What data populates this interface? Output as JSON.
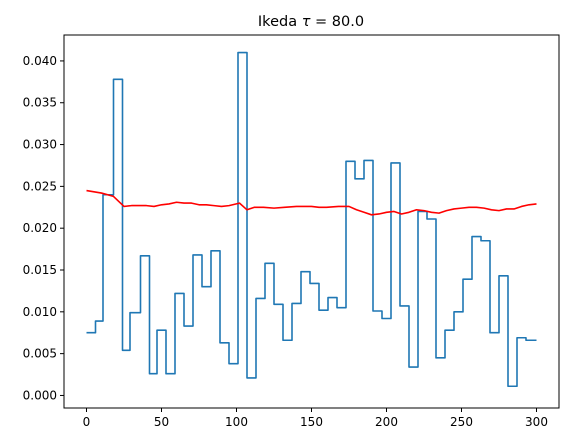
{
  "chart_data": {
    "type": "line",
    "title_prefix": "Ikeda ",
    "title_symbol": "τ",
    "title_suffix": " = 80.0",
    "xlabel": "",
    "ylabel": "",
    "xlim": [
      -15,
      315
    ],
    "ylim": [
      -0.0015,
      0.0431
    ],
    "x_ticks": [
      0,
      50,
      100,
      150,
      200,
      250,
      300
    ],
    "x_tick_labels": [
      "0",
      "50",
      "100",
      "150",
      "200",
      "250",
      "300"
    ],
    "y_ticks": [
      0.0,
      0.005,
      0.01,
      0.015,
      0.02,
      0.025,
      0.03,
      0.035,
      0.04
    ],
    "y_tick_labels": [
      "0.000",
      "0.005",
      "0.010",
      "0.015",
      "0.020",
      "0.025",
      "0.030",
      "0.035",
      "0.040"
    ],
    "grid": false,
    "legend": "none",
    "series": [
      {
        "color": "#1f77b4",
        "drawstyle": "steps",
        "points": [
          [
            0,
            0.0075
          ],
          [
            6,
            0.0075
          ],
          [
            6,
            0.0089
          ],
          [
            11,
            0.0089
          ],
          [
            11,
            0.024
          ],
          [
            18,
            0.024
          ],
          [
            18,
            0.0378
          ],
          [
            24,
            0.0378
          ],
          [
            24,
            0.0054
          ],
          [
            29,
            0.0054
          ],
          [
            29,
            0.0099
          ],
          [
            36,
            0.0099
          ],
          [
            36,
            0.0167
          ],
          [
            42,
            0.0167
          ],
          [
            42,
            0.0026
          ],
          [
            47,
            0.0026
          ],
          [
            47,
            0.0078
          ],
          [
            53,
            0.0078
          ],
          [
            53,
            0.0026
          ],
          [
            59,
            0.0026
          ],
          [
            59,
            0.0122
          ],
          [
            65,
            0.0122
          ],
          [
            65,
            0.0083
          ],
          [
            71,
            0.0083
          ],
          [
            71,
            0.0168
          ],
          [
            77,
            0.0168
          ],
          [
            77,
            0.013
          ],
          [
            83,
            0.013
          ],
          [
            83,
            0.0173
          ],
          [
            89,
            0.0173
          ],
          [
            89,
            0.0063
          ],
          [
            95,
            0.0063
          ],
          [
            95,
            0.0038
          ],
          [
            101,
            0.0038
          ],
          [
            101,
            0.041
          ],
          [
            107,
            0.041
          ],
          [
            107,
            0.0021
          ],
          [
            113,
            0.0021
          ],
          [
            113,
            0.0116
          ],
          [
            119,
            0.0116
          ],
          [
            119,
            0.0158
          ],
          [
            125,
            0.0158
          ],
          [
            125,
            0.0109
          ],
          [
            131,
            0.0109
          ],
          [
            131,
            0.0066
          ],
          [
            137,
            0.0066
          ],
          [
            137,
            0.011
          ],
          [
            143,
            0.011
          ],
          [
            143,
            0.0148
          ],
          [
            149,
            0.0148
          ],
          [
            149,
            0.0134
          ],
          [
            155,
            0.0134
          ],
          [
            155,
            0.0102
          ],
          [
            161,
            0.0102
          ],
          [
            161,
            0.0117
          ],
          [
            167,
            0.0117
          ],
          [
            167,
            0.0105
          ],
          [
            173,
            0.0105
          ],
          [
            173,
            0.028
          ],
          [
            179,
            0.028
          ],
          [
            179,
            0.0259
          ],
          [
            185,
            0.0259
          ],
          [
            185,
            0.0281
          ],
          [
            191,
            0.0281
          ],
          [
            191,
            0.0101
          ],
          [
            197,
            0.0101
          ],
          [
            197,
            0.0092
          ],
          [
            203,
            0.0092
          ],
          [
            203,
            0.0278
          ],
          [
            209,
            0.0278
          ],
          [
            209,
            0.0107
          ],
          [
            215,
            0.0107
          ],
          [
            215,
            0.0034
          ],
          [
            221,
            0.0034
          ],
          [
            221,
            0.022
          ],
          [
            227,
            0.022
          ],
          [
            227,
            0.0211
          ],
          [
            233,
            0.0211
          ],
          [
            233,
            0.0045
          ],
          [
            239,
            0.0045
          ],
          [
            239,
            0.0078
          ],
          [
            245,
            0.0078
          ],
          [
            245,
            0.01
          ],
          [
            251,
            0.01
          ],
          [
            251,
            0.0139
          ],
          [
            257,
            0.0139
          ],
          [
            257,
            0.019
          ],
          [
            263,
            0.019
          ],
          [
            263,
            0.0185
          ],
          [
            269,
            0.0185
          ],
          [
            269,
            0.0075
          ],
          [
            275,
            0.0075
          ],
          [
            275,
            0.0143
          ],
          [
            281,
            0.0143
          ],
          [
            281,
            0.0011
          ],
          [
            287,
            0.0011
          ],
          [
            287,
            0.0069
          ],
          [
            293,
            0.0069
          ],
          [
            293,
            0.0066
          ],
          [
            300,
            0.0066
          ]
        ]
      },
      {
        "color": "#ff0000",
        "drawstyle": "line",
        "points": [
          [
            0,
            0.0245
          ],
          [
            10,
            0.0242
          ],
          [
            18,
            0.0238
          ],
          [
            25,
            0.0226
          ],
          [
            30,
            0.0227
          ],
          [
            40,
            0.0227
          ],
          [
            45,
            0.0226
          ],
          [
            50,
            0.0228
          ],
          [
            55,
            0.0229
          ],
          [
            60,
            0.0231
          ],
          [
            65,
            0.023
          ],
          [
            70,
            0.023
          ],
          [
            75,
            0.0228
          ],
          [
            80,
            0.0228
          ],
          [
            85,
            0.0227
          ],
          [
            90,
            0.0226
          ],
          [
            95,
            0.0227
          ],
          [
            102,
            0.023
          ],
          [
            107,
            0.0222
          ],
          [
            112,
            0.0225
          ],
          [
            118,
            0.0225
          ],
          [
            125,
            0.0224
          ],
          [
            132,
            0.0225
          ],
          [
            140,
            0.0226
          ],
          [
            150,
            0.0226
          ],
          [
            155,
            0.0225
          ],
          [
            160,
            0.0225
          ],
          [
            168,
            0.0226
          ],
          [
            175,
            0.0226
          ],
          [
            180,
            0.0222
          ],
          [
            185,
            0.0219
          ],
          [
            190,
            0.0216
          ],
          [
            195,
            0.0217
          ],
          [
            200,
            0.0219
          ],
          [
            205,
            0.022
          ],
          [
            210,
            0.0217
          ],
          [
            215,
            0.0219
          ],
          [
            220,
            0.0222
          ],
          [
            225,
            0.0221
          ],
          [
            230,
            0.0219
          ],
          [
            235,
            0.0218
          ],
          [
            240,
            0.0221
          ],
          [
            245,
            0.0223
          ],
          [
            250,
            0.0224
          ],
          [
            255,
            0.0225
          ],
          [
            260,
            0.0225
          ],
          [
            265,
            0.0224
          ],
          [
            270,
            0.0222
          ],
          [
            275,
            0.0221
          ],
          [
            280,
            0.0223
          ],
          [
            285,
            0.0223
          ],
          [
            290,
            0.0226
          ],
          [
            295,
            0.0228
          ],
          [
            300,
            0.0229
          ]
        ]
      }
    ]
  }
}
